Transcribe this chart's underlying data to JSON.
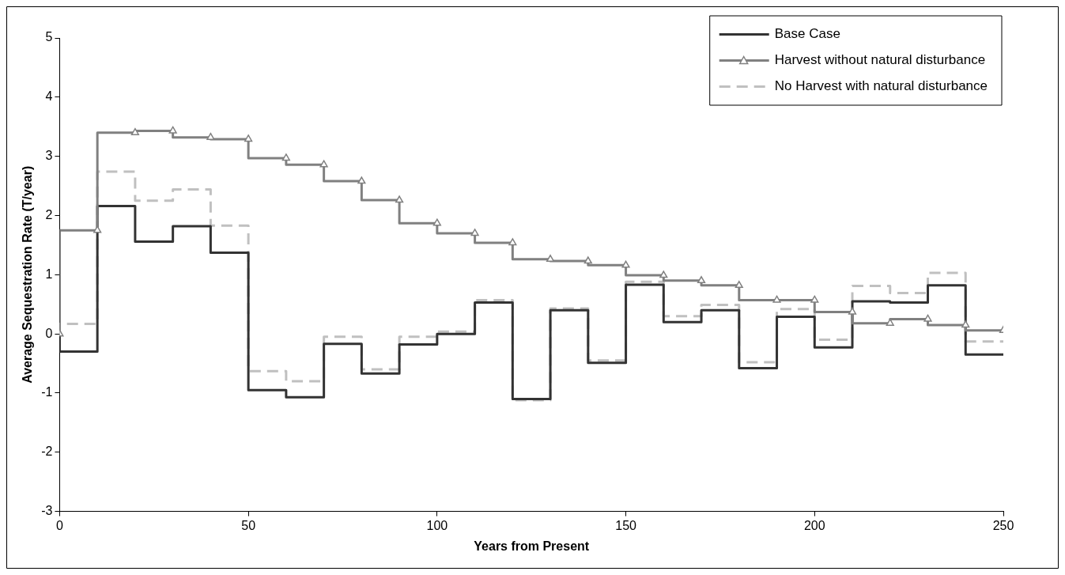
{
  "chart_data": {
    "type": "step",
    "xlabel": "Years from Present",
    "ylabel": "Average Sequestration Rate (T/year)",
    "x": [
      0,
      10,
      20,
      30,
      40,
      50,
      60,
      70,
      80,
      90,
      100,
      110,
      120,
      130,
      140,
      150,
      160,
      170,
      180,
      190,
      200,
      210,
      220,
      230,
      240,
      250
    ],
    "series": [
      {
        "name": "Base Case",
        "color": "#333333",
        "line_style": "solid",
        "marker": "none",
        "values": [
          0,
          -0.3,
          2.16,
          1.56,
          1.82,
          1.37,
          -0.95,
          -1.07,
          -0.17,
          -0.67,
          -0.18,
          0.0,
          0.53,
          -1.1,
          0.4,
          -0.49,
          0.83,
          0.2,
          0.4,
          -0.58,
          0.29,
          -0.23,
          0.55,
          0.53,
          0.82,
          -0.35
        ]
      },
      {
        "name": "Harvest without natural disturbance",
        "color": "#808080",
        "line_style": "solid",
        "marker": "triangle",
        "values": [
          0,
          1.75,
          3.4,
          3.43,
          3.32,
          3.29,
          2.97,
          2.86,
          2.58,
          2.26,
          1.87,
          1.7,
          1.54,
          1.26,
          1.23,
          1.16,
          0.99,
          0.9,
          0.82,
          0.57,
          0.57,
          0.37,
          0.18,
          0.25,
          0.15,
          0.06
        ]
      },
      {
        "name": "No Harvest with natural disturbance",
        "color": "#c0c0c0",
        "line_style": "dashed",
        "marker": "none",
        "values": [
          0,
          0.17,
          2.74,
          2.25,
          2.44,
          1.83,
          -0.63,
          -0.8,
          -0.05,
          -0.6,
          -0.05,
          0.04,
          0.57,
          -1.12,
          0.43,
          -0.45,
          0.88,
          0.3,
          0.49,
          -0.48,
          0.42,
          -0.1,
          0.81,
          0.69,
          1.03,
          -0.13
        ]
      }
    ],
    "xlim": [
      0,
      250
    ],
    "xticks": [
      0,
      50,
      100,
      150,
      200,
      250
    ],
    "ylim": [
      -3,
      5
    ],
    "yticks": [
      -3,
      -2,
      -1,
      0,
      1,
      2,
      3,
      4,
      5
    ],
    "grid": false,
    "legend": "top right"
  }
}
